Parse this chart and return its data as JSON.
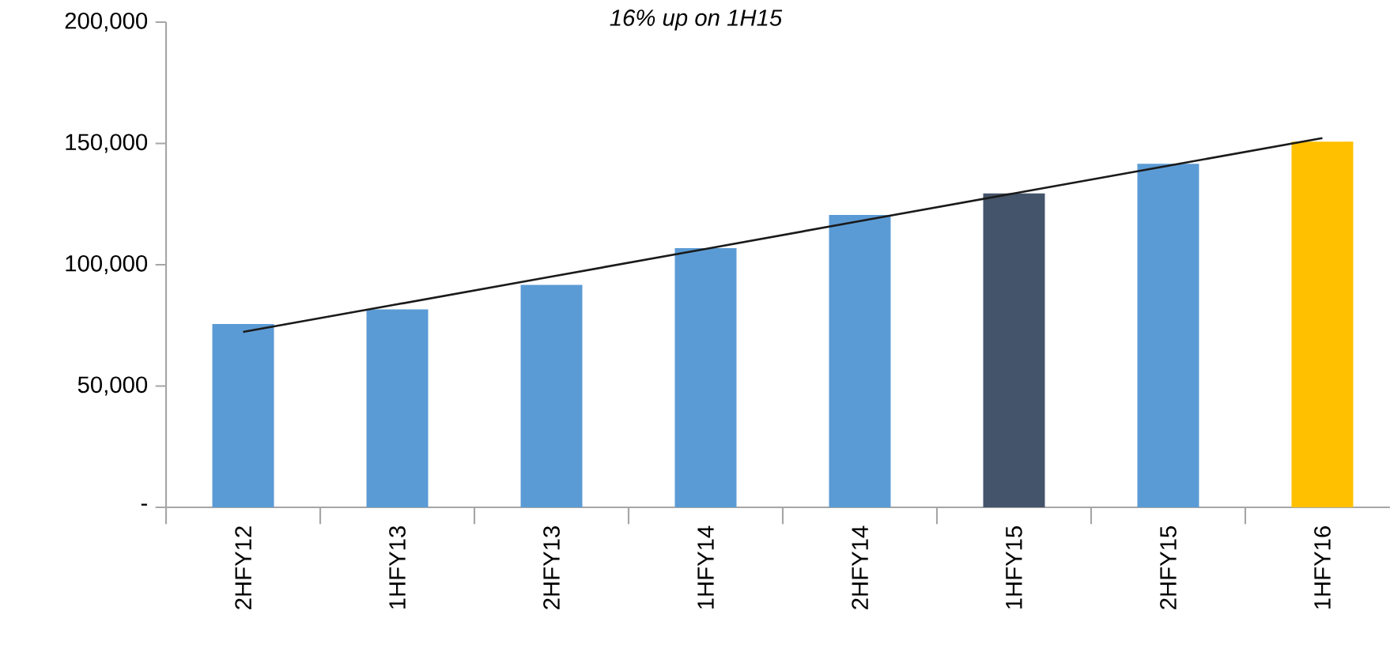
{
  "chart_data": {
    "type": "bar",
    "annotations": [
      "16% up on 1H15"
    ],
    "categories": [
      "2HFY12",
      "1HFY13",
      "2HFY13",
      "1HFY14",
      "2HFY14",
      "1HFY15",
      "2HFY15",
      "1HFY16"
    ],
    "series": [
      {
        "colors": [
          "#5b9bd5",
          "#5b9bd5",
          "#5b9bd5",
          "#5b9bd5",
          "#5b9bd5",
          "#44546a",
          "#5b9bd5",
          "#ffc000"
        ],
        "values": [
          75600,
          81600,
          91700,
          106800,
          120500,
          129400,
          141600,
          150700
        ]
      },
      {
        "type": "line",
        "color": "#1a1a1a",
        "marker": "none",
        "values": [
          72300,
          83700,
          95100,
          106500,
          118000,
          129400,
          140800,
          152200
        ]
      }
    ],
    "ylim": [
      0,
      200000
    ],
    "yticks": [
      {
        "value": 0,
        "label": "-"
      },
      {
        "value": 50000,
        "label": "50,000"
      },
      {
        "value": 100000,
        "label": "100,000"
      },
      {
        "value": 150000,
        "label": "150,000"
      },
      {
        "value": 200000,
        "label": "200,000"
      }
    ]
  }
}
